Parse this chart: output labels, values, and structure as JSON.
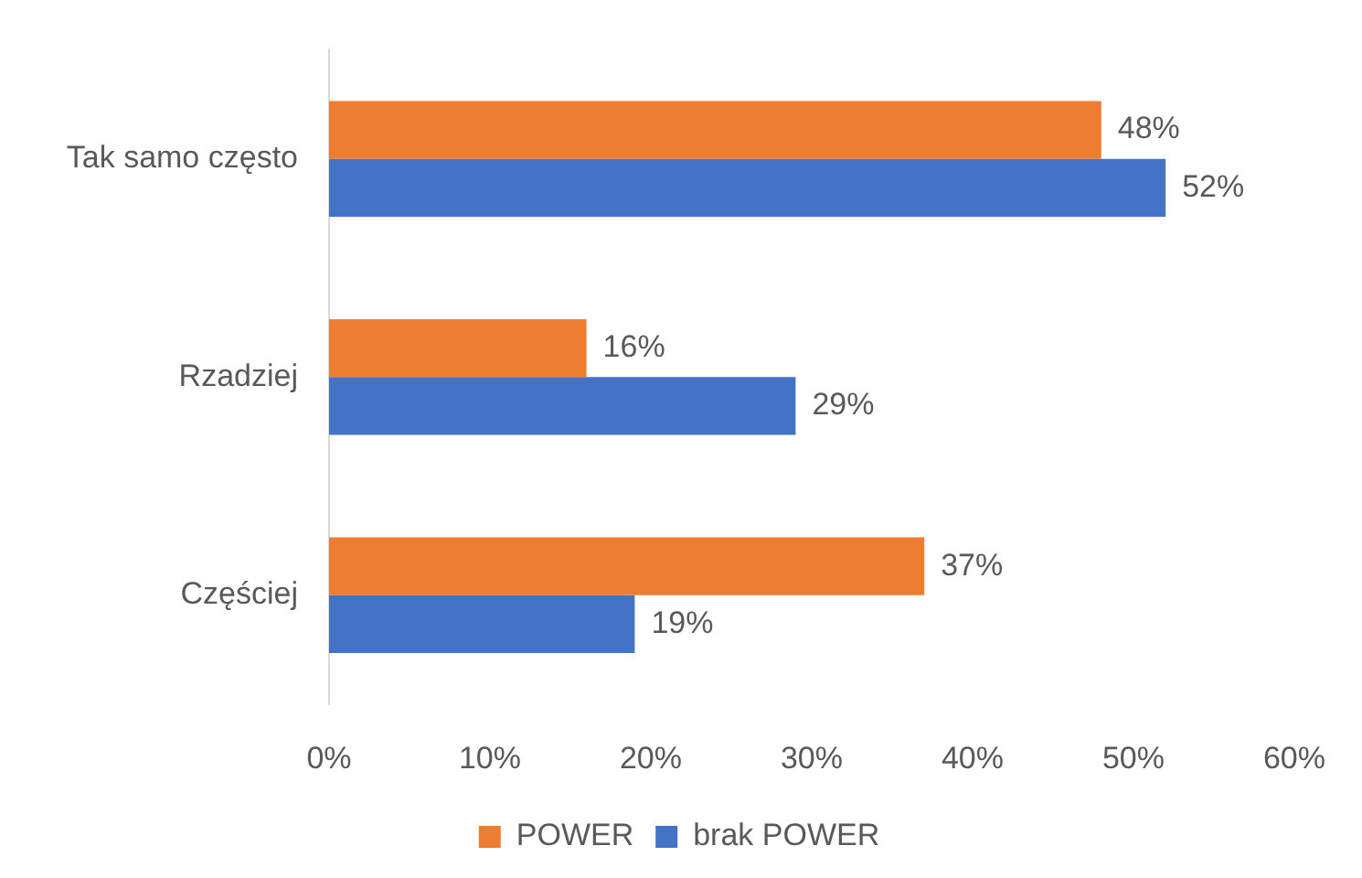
{
  "chart_data": {
    "type": "bar",
    "orientation": "horizontal",
    "categories": [
      "Tak samo często",
      "Rzadziej",
      "Częściej"
    ],
    "series": [
      {
        "name": "POWER",
        "color": "#ed7d31",
        "values": [
          48,
          16,
          37
        ],
        "value_labels": [
          "48%",
          "16%",
          "37%"
        ]
      },
      {
        "name": "brak POWER",
        "color": "#4472c4",
        "values": [
          52,
          29,
          19
        ],
        "value_labels": [
          "52%",
          "29%",
          "19%"
        ]
      }
    ],
    "xlim": [
      0,
      60
    ],
    "xticks": [
      {
        "value": 0,
        "label": "0%"
      },
      {
        "value": 10,
        "label": "10%"
      },
      {
        "value": 20,
        "label": "20%"
      },
      {
        "value": 30,
        "label": "30%"
      },
      {
        "value": 40,
        "label": "40%"
      },
      {
        "value": 50,
        "label": "50%"
      },
      {
        "value": 60,
        "label": "60%"
      }
    ],
    "legend": "bottom"
  }
}
